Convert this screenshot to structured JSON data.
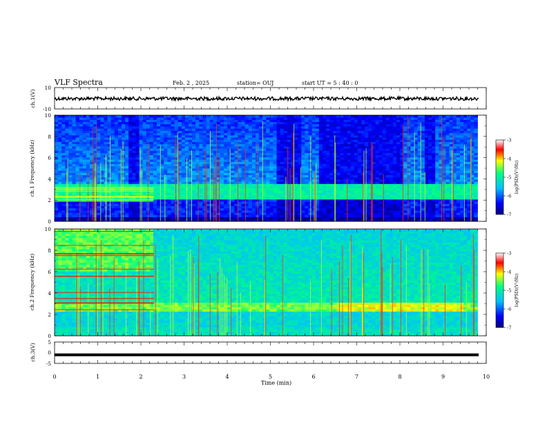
{
  "header": {
    "title": "VLF Spectra",
    "date": "Feb. 2 , 2025",
    "station": "station= OUJ",
    "start": "start  UT =   5 : 40 : 0"
  },
  "colors": {
    "spectrogram_scale": [
      "#000080",
      "#0000ff",
      "#00c0ff",
      "#00ff80",
      "#ffff00",
      "#ff0000",
      "#ffffff"
    ]
  },
  "chart_data": [
    {
      "type": "line",
      "name": "ch1-waveform",
      "ylabel": "ch.1(V)",
      "ylim": [
        -10,
        10
      ],
      "yticks": [
        "10",
        "-10"
      ],
      "xlim": [
        0,
        10
      ],
      "trace_level": 0
    },
    {
      "type": "heatmap",
      "name": "ch1-spectrogram",
      "ylabel": "ch.1 Frequency (kHz)",
      "ylim": [
        0,
        10
      ],
      "yticks": [
        "0",
        "2",
        "4",
        "6",
        "8",
        "10"
      ],
      "xlim": [
        0,
        10
      ],
      "data_end_min": 9.8,
      "colorbar": {
        "label": "log(PSD)(V²/Hz)",
        "range": [
          -7,
          -3
        ],
        "ticks": [
          "-3",
          "-4",
          "-5",
          "-6",
          "-7"
        ]
      },
      "quiet_intervals_min": [
        [
          1.75,
          2.0
        ],
        [
          5.15,
          5.75
        ],
        [
          6.1,
          8.05
        ],
        [
          8.6,
          8.85
        ]
      ]
    },
    {
      "type": "heatmap",
      "name": "ch2-spectrogram",
      "ylabel": "ch.2 Frequency (kHz)",
      "ylim": [
        0,
        10
      ],
      "yticks": [
        "0",
        "2",
        "4",
        "6",
        "8",
        "10"
      ],
      "xlim": [
        0,
        10
      ],
      "data_end_min": 9.8,
      "colorbar": {
        "label": "log(PSD)(V²/Hz)",
        "range": [
          -7,
          -3
        ],
        "ticks": [
          "-3",
          "-4",
          "-5",
          "-6",
          "-7"
        ]
      },
      "interference_until_min": 2.3
    },
    {
      "type": "line",
      "name": "ch3-waveform",
      "ylabel": "ch.3(V)",
      "ylim": [
        -5,
        5
      ],
      "yticks": [
        "5",
        "0",
        "-5"
      ],
      "xlim": [
        0,
        10
      ],
      "trace_level": -1
    }
  ],
  "xaxis": {
    "label": "Time  (min)",
    "ticks": [
      "0",
      "1",
      "2",
      "3",
      "4",
      "5",
      "6",
      "7",
      "8",
      "9",
      "10"
    ]
  }
}
